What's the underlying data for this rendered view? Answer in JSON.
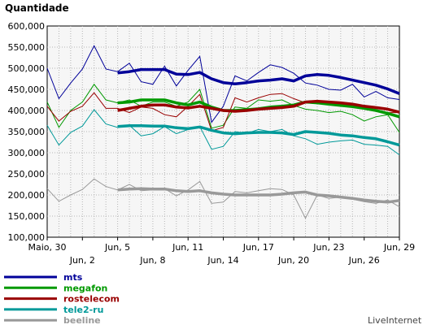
{
  "chart_data": {
    "type": "line",
    "title": "Quantidade",
    "brand": "LiveInternet",
    "ylim": [
      100000,
      600000
    ],
    "y_ticks": [
      {
        "value": 600000,
        "label": "600,000"
      },
      {
        "value": 550000,
        "label": "550,000"
      },
      {
        "value": 500000,
        "label": "500,000"
      },
      {
        "value": 450000,
        "label": "450,000"
      },
      {
        "value": 400000,
        "label": "400,000"
      },
      {
        "value": 350000,
        "label": "350,000"
      },
      {
        "value": 300000,
        "label": "300,000"
      },
      {
        "value": 250000,
        "label": "250,000"
      },
      {
        "value": 200000,
        "label": "200,000"
      },
      {
        "value": 150000,
        "label": "150,000"
      },
      {
        "value": 100000,
        "label": "100,000"
      }
    ],
    "x_ticks": [
      {
        "day": 0,
        "label": "Maio, 30",
        "row": 1
      },
      {
        "day": 3,
        "label": "Jun, 2",
        "row": 2
      },
      {
        "day": 6,
        "label": "Jun, 5",
        "row": 1
      },
      {
        "day": 9,
        "label": "Jun, 8",
        "row": 2
      },
      {
        "day": 12,
        "label": "Jun, 11",
        "row": 1
      },
      {
        "day": 15,
        "label": "Jun, 14",
        "row": 2
      },
      {
        "day": 18,
        "label": "Jun, 17",
        "row": 1
      },
      {
        "day": 21,
        "label": "Jun, 20",
        "row": 2
      },
      {
        "day": 24,
        "label": "Jun, 23",
        "row": 1
      },
      {
        "day": 27,
        "label": "Jun, 26",
        "row": 2
      },
      {
        "day": 30,
        "label": "Jun, 29",
        "row": 1
      }
    ],
    "x_range": [
      0,
      30
    ],
    "grid": true,
    "series": [
      {
        "name": "mts",
        "color": "#000099",
        "daily": [
          500000,
          428000,
          465000,
          498000,
          553000,
          498000,
          492000,
          512000,
          468000,
          462000,
          505000,
          458000,
          495000,
          528000,
          372000,
          410000,
          482000,
          470000,
          490000,
          508000,
          502000,
          488000,
          465000,
          460000,
          450000,
          448000,
          462000,
          432000,
          445000,
          430000,
          426000
        ],
        "trend_start_day": 6,
        "trend": [
          489000,
          492000,
          497000,
          497000,
          497000,
          486000,
          485000,
          490000,
          475000,
          466000,
          463000,
          466000,
          470000,
          472000,
          475000,
          470000,
          482000,
          485000,
          483000,
          478000,
          472000,
          466000,
          460000,
          451000,
          440000
        ]
      },
      {
        "name": "megafon",
        "color": "#009900",
        "daily": [
          420000,
          360000,
          400000,
          420000,
          462000,
          425000,
          418000,
          425000,
          410000,
          420000,
          420000,
          410000,
          420000,
          450000,
          358000,
          365000,
          408000,
          405000,
          425000,
          422000,
          425000,
          412000,
          403000,
          400000,
          395000,
          398000,
          390000,
          375000,
          385000,
          390000,
          348000
        ],
        "trend_start_day": 6,
        "trend": [
          418000,
          420000,
          425000,
          425000,
          425000,
          418000,
          413000,
          420000,
          408000,
          400000,
          400000,
          402000,
          404000,
          408000,
          410000,
          413000,
          420000,
          418000,
          415000,
          412000,
          409000,
          405000,
          400000,
          393000,
          385000
        ]
      },
      {
        "name": "rostelecom",
        "color": "#990000",
        "daily": [
          410000,
          375000,
          398000,
          410000,
          442000,
          405000,
          405000,
          395000,
          408000,
          405000,
          390000,
          385000,
          410000,
          438000,
          352000,
          360000,
          430000,
          420000,
          430000,
          438000,
          440000,
          428000,
          418000,
          420000,
          415000,
          412000,
          410000,
          405000,
          398000,
          395000,
          395000
        ],
        "trend_start_day": 6,
        "trend": [
          400000,
          405000,
          410000,
          413000,
          413000,
          408000,
          406000,
          410000,
          405000,
          400000,
          398000,
          400000,
          403000,
          405000,
          407000,
          410000,
          420000,
          422000,
          420000,
          418000,
          415000,
          410000,
          407000,
          403000,
          396000
        ]
      },
      {
        "name": "tele2-ru",
        "color": "#009999",
        "daily": [
          365000,
          318000,
          348000,
          363000,
          402000,
          368000,
          360000,
          365000,
          340000,
          345000,
          362000,
          345000,
          355000,
          362000,
          308000,
          315000,
          350000,
          346000,
          355000,
          350000,
          355000,
          340000,
          333000,
          320000,
          325000,
          328000,
          330000,
          320000,
          318000,
          315000,
          295000
        ],
        "trend_start_day": 6,
        "trend": [
          362000,
          364000,
          364000,
          363000,
          363000,
          359000,
          357000,
          361000,
          353000,
          347000,
          345000,
          347000,
          348000,
          348000,
          347000,
          343000,
          350000,
          348000,
          346000,
          342000,
          340000,
          336000,
          333000,
          326000,
          318000
        ]
      },
      {
        "name": "beeline",
        "color": "#999999",
        "daily": [
          215000,
          185000,
          200000,
          213000,
          238000,
          220000,
          212000,
          225000,
          210000,
          212000,
          215000,
          198000,
          212000,
          232000,
          180000,
          183000,
          208000,
          205000,
          210000,
          215000,
          213000,
          200000,
          145000,
          200000,
          192000,
          195000,
          190000,
          184000,
          180000,
          188000,
          172000
        ],
        "trend_start_day": 6,
        "trend": [
          212000,
          214000,
          215000,
          214000,
          214000,
          210000,
          208000,
          210000,
          205000,
          202000,
          200000,
          200000,
          200000,
          200000,
          202000,
          205000,
          207000,
          200000,
          198000,
          195000,
          192000,
          188000,
          185000,
          183000,
          187000
        ]
      }
    ]
  }
}
